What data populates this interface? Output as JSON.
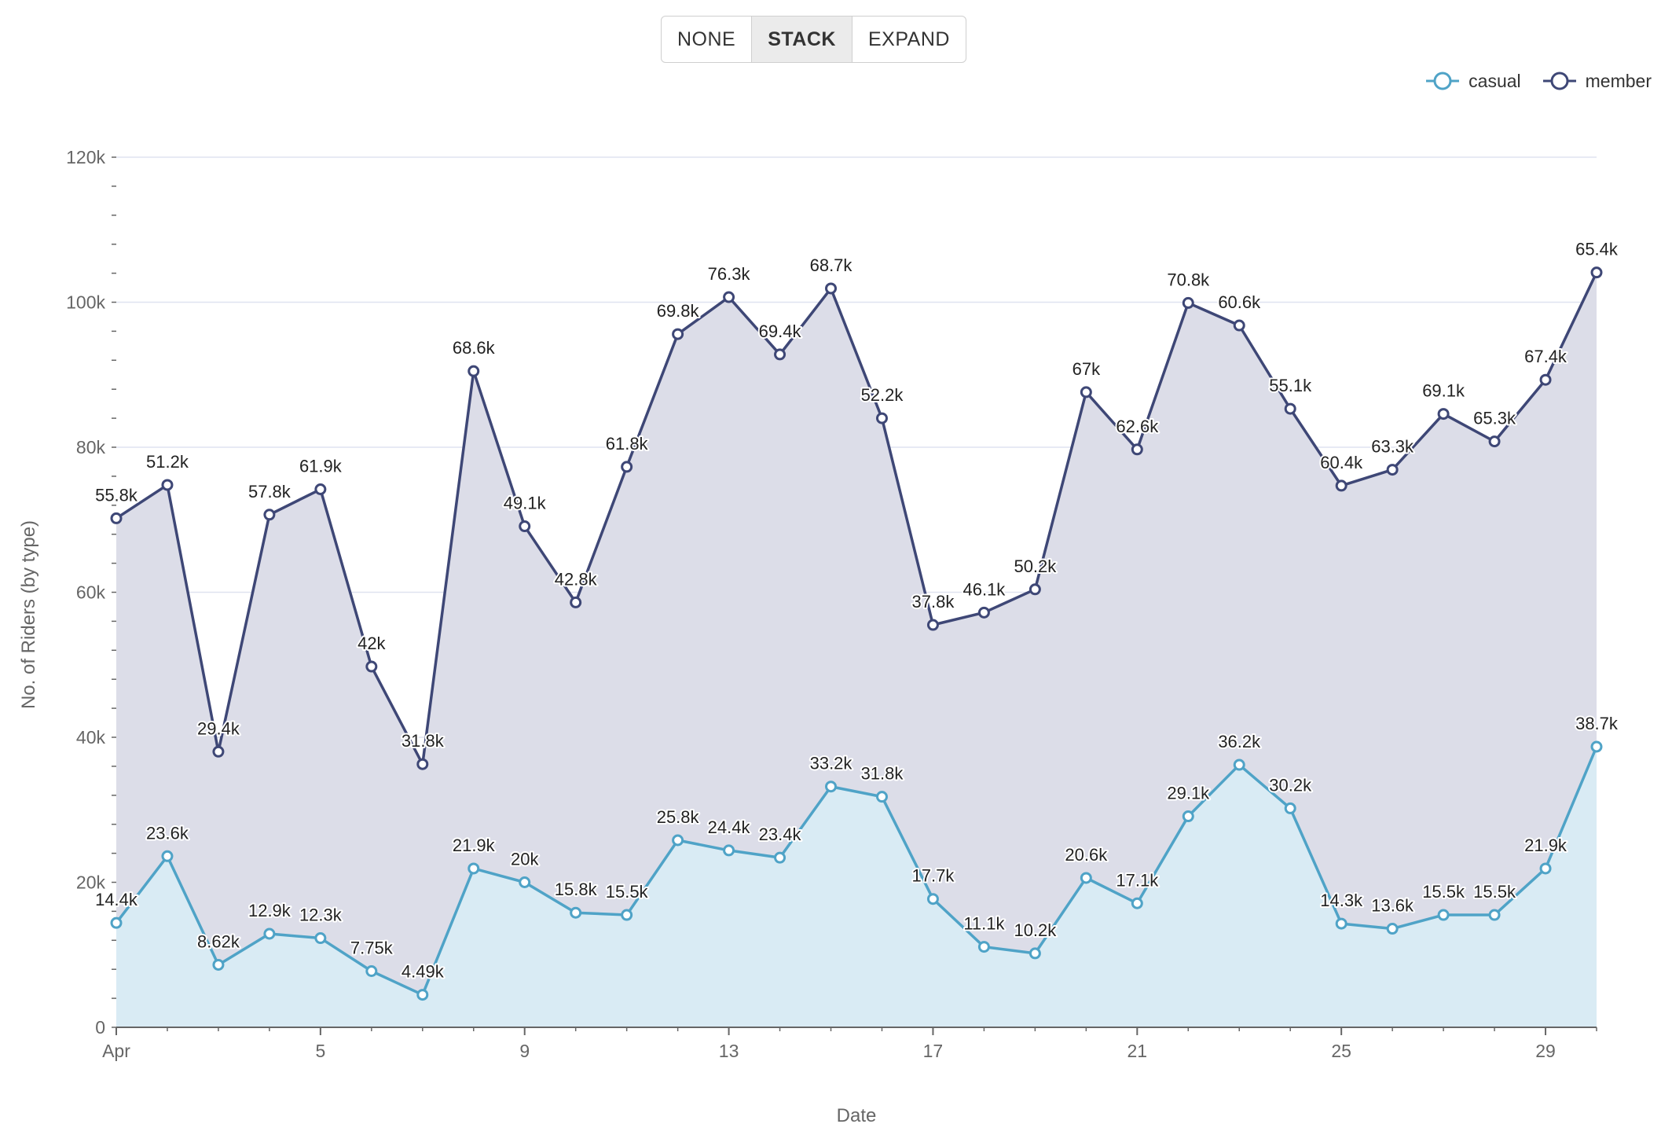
{
  "stack_mode": {
    "options": [
      "NONE",
      "STACK",
      "EXPAND"
    ],
    "selected": "STACK"
  },
  "legend": [
    {
      "label": "casual",
      "color": "#4fa3c7"
    },
    {
      "label": "member",
      "color": "#3e4776"
    }
  ],
  "chart_data": {
    "type": "area",
    "stacked": true,
    "xlabel": "Date",
    "ylabel": "No. of Riders (by type)",
    "x": [
      1,
      2,
      3,
      4,
      5,
      6,
      7,
      8,
      9,
      10,
      11,
      12,
      13,
      14,
      15,
      16,
      17,
      18,
      19,
      20,
      21,
      22,
      23,
      24,
      25,
      26,
      27,
      28,
      29,
      30
    ],
    "x_tick_values": [
      1,
      5,
      9,
      13,
      17,
      21,
      25,
      29
    ],
    "x_tick_labels": [
      "Apr",
      "5",
      "9",
      "13",
      "17",
      "21",
      "25",
      "29"
    ],
    "y_ticks": [
      0,
      20000,
      40000,
      60000,
      80000,
      100000,
      120000
    ],
    "y_tick_labels": [
      "0",
      "20k",
      "40k",
      "60k",
      "80k",
      "100k",
      "120k"
    ],
    "ylim": [
      0,
      120000
    ],
    "grid": true,
    "legend_position": "top-right",
    "series": [
      {
        "name": "casual",
        "color": "#4fa3c7",
        "fill": "#d9ebf4",
        "values": [
          14400,
          23600,
          8620,
          12900,
          12300,
          7750,
          4490,
          21900,
          20000,
          15800,
          15500,
          25800,
          24400,
          23400,
          33200,
          31800,
          17700,
          11100,
          10200,
          20600,
          17100,
          29100,
          36200,
          30200,
          14300,
          13600,
          15500,
          15500,
          21900,
          38700
        ],
        "labels": [
          "14.4k",
          "23.6k",
          "8.62k",
          "12.9k",
          "12.3k",
          "7.75k",
          "4.49k",
          "21.9k",
          "20k",
          "15.8k",
          "15.5k",
          "25.8k",
          "24.4k",
          "23.4k",
          "33.2k",
          "31.8k",
          "17.7k",
          "11.1k",
          "10.2k",
          "20.6k",
          "17.1k",
          "29.1k",
          "36.2k",
          "30.2k",
          "14.3k",
          "13.6k",
          "15.5k",
          "15.5k",
          "21.9k",
          "38.7k"
        ]
      },
      {
        "name": "member",
        "color": "#3e4776",
        "fill": "#dcdde8",
        "values": [
          55800,
          51200,
          29400,
          57800,
          61900,
          42000,
          31800,
          68600,
          49100,
          42800,
          61800,
          69800,
          76300,
          69400,
          68700,
          52200,
          37800,
          46100,
          50200,
          67000,
          62600,
          70800,
          60600,
          55100,
          60400,
          63300,
          69100,
          65300,
          67400,
          65400
        ],
        "labels": [
          "55.8k",
          "51.2k",
          "29.4k",
          "57.8k",
          "61.9k",
          "42k",
          "31.8k",
          "68.6k",
          "49.1k",
          "42.8k",
          "61.8k",
          "69.8k",
          "76.3k",
          "69.4k",
          "68.7k",
          "52.2k",
          "37.8k",
          "46.1k",
          "50.2k",
          "67k",
          "62.6k",
          "70.8k",
          "60.6k",
          "55.1k",
          "60.4k",
          "63.3k",
          "69.1k",
          "65.3k",
          "67.4k",
          "65.4k"
        ]
      }
    ]
  }
}
